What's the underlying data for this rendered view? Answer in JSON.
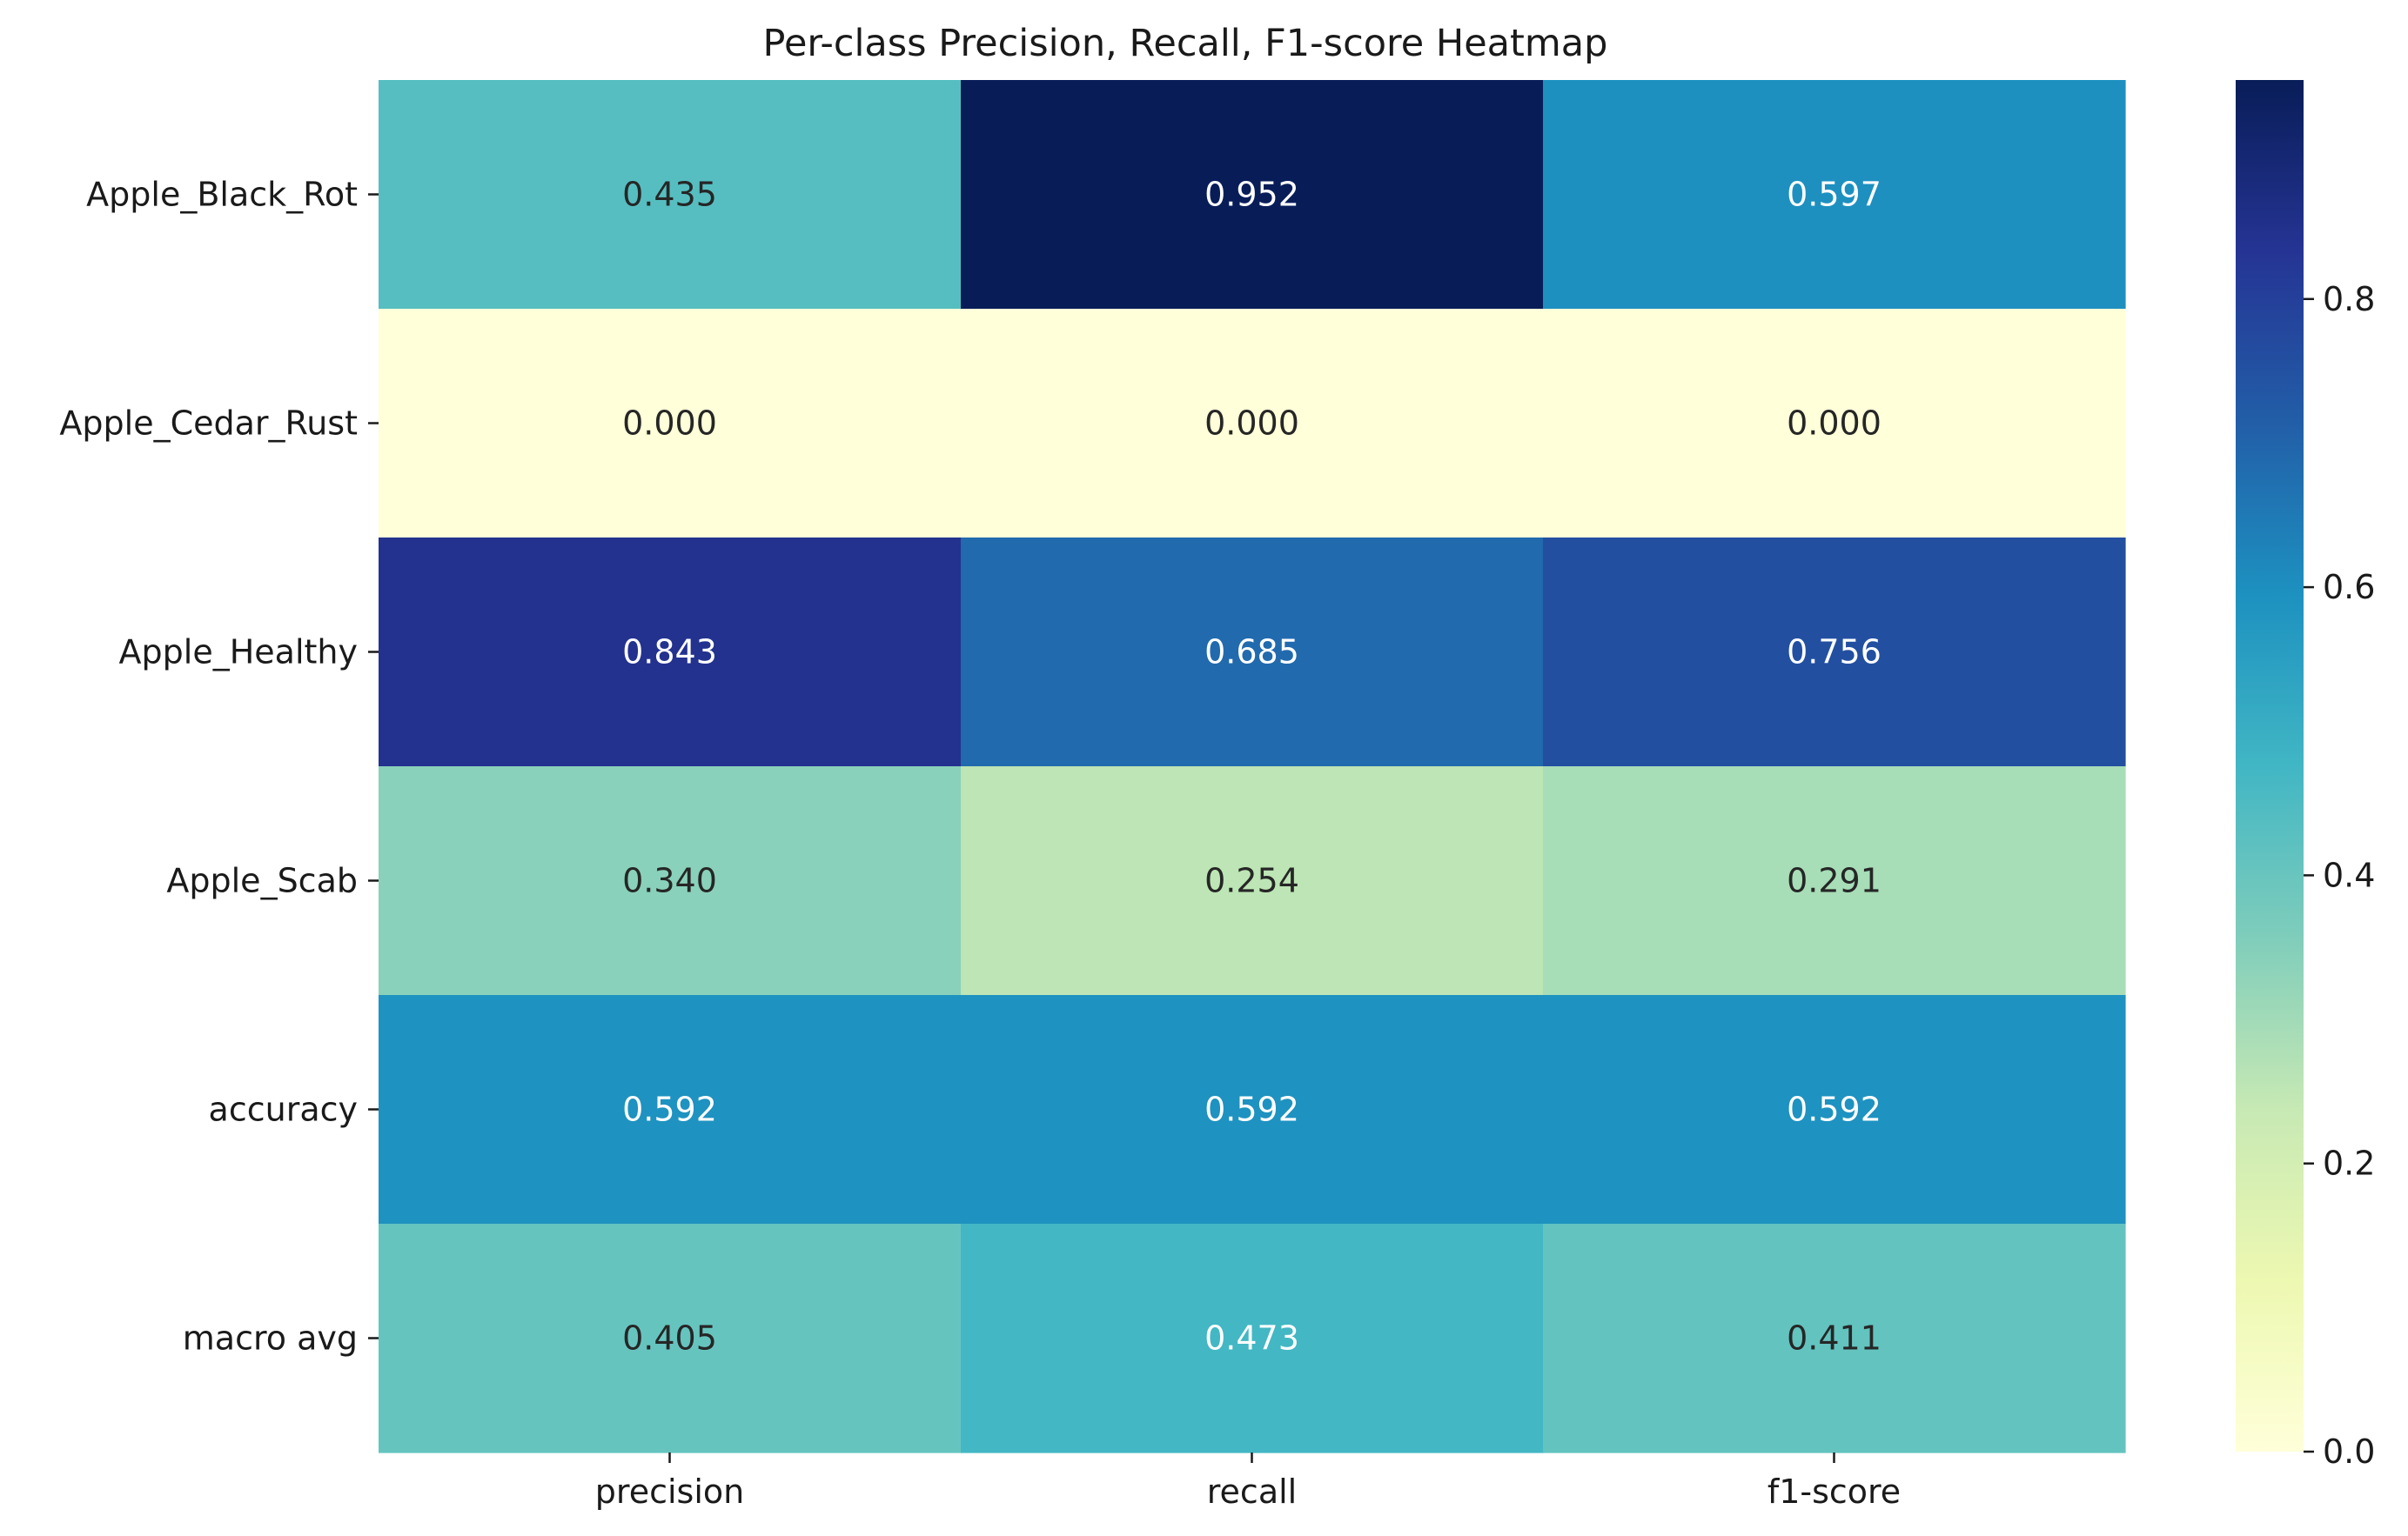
{
  "chart_data": {
    "type": "heatmap",
    "title": "Per-class Precision, Recall, F1-score Heatmap",
    "xlabel": "",
    "ylabel": "",
    "columns": [
      "precision",
      "recall",
      "f1-score"
    ],
    "rows": [
      "Apple_Black_Rot",
      "Apple_Cedar_Rust",
      "Apple_Healthy",
      "Apple_Scab",
      "accuracy",
      "macro avg"
    ],
    "values": [
      [
        0.435,
        0.952,
        0.597
      ],
      [
        0.0,
        0.0,
        0.0
      ],
      [
        0.843,
        0.685,
        0.756
      ],
      [
        0.34,
        0.254,
        0.291
      ],
      [
        0.592,
        0.592,
        0.592
      ],
      [
        0.405,
        0.473,
        0.411
      ]
    ],
    "annotation_format": "0.000",
    "colormap": "YlGnBu",
    "colormap_stops": [
      "#ffffd9",
      "#edf8b1",
      "#c7e9b4",
      "#7fcdbb",
      "#41b6c4",
      "#1d91c0",
      "#225ea8",
      "#253494",
      "#081d58"
    ],
    "annotation_color_light": "#ffffff",
    "annotation_color_dark": "#262626",
    "colorbar": {
      "min": 0.0,
      "max": 0.952,
      "ticks": [
        0.0,
        0.2,
        0.4,
        0.6,
        0.8
      ],
      "tick_labels": [
        "0.0",
        "0.2",
        "0.4",
        "0.6",
        "0.8"
      ],
      "placement": "right"
    },
    "grid": false,
    "legend": "colorbar-right"
  }
}
